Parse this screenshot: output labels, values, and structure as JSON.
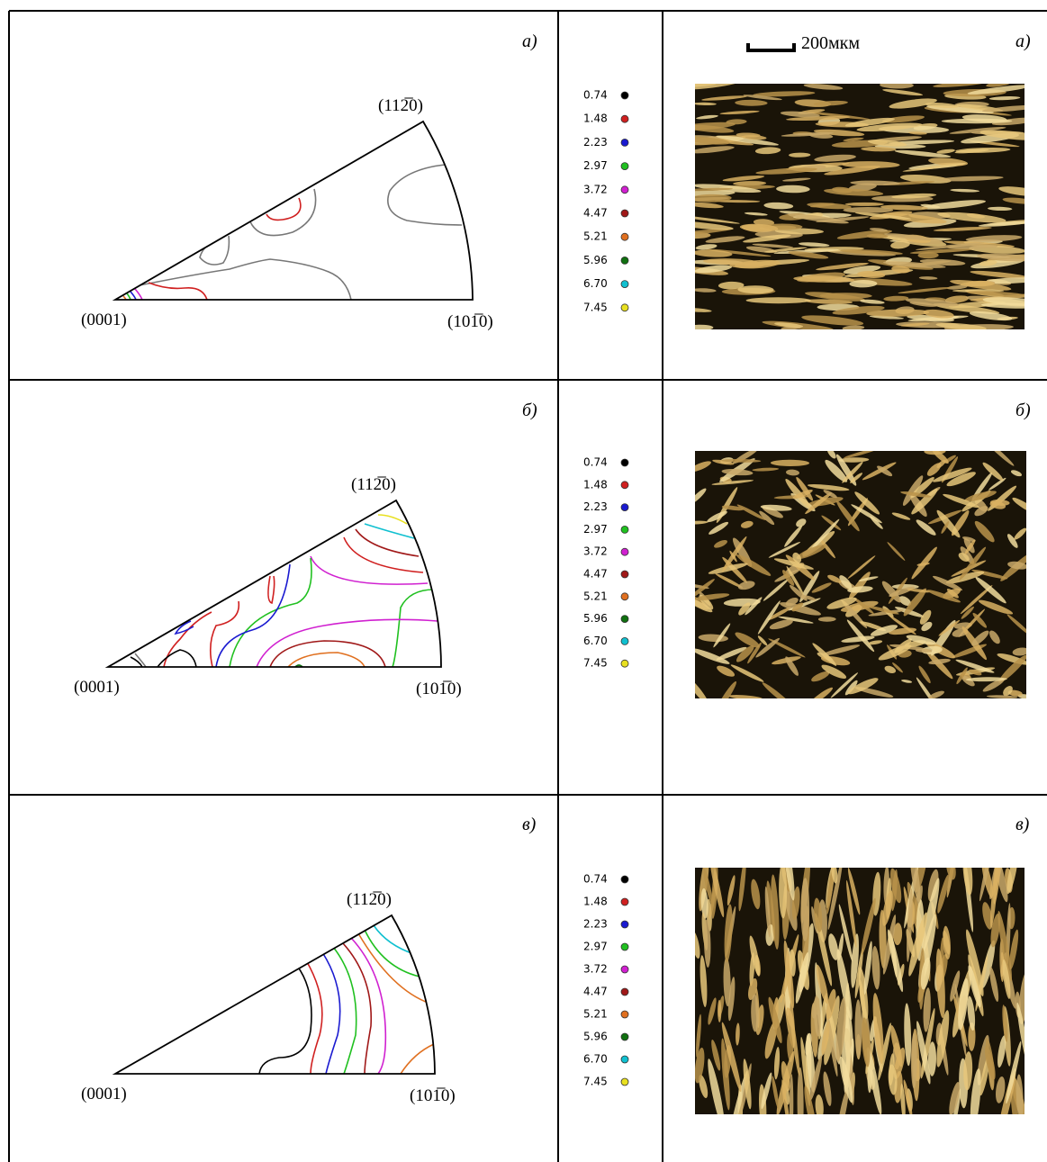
{
  "scale_bar": "200мкм",
  "rows": [
    {
      "label": "а)",
      "pole_labels": {
        "origin": "(0001)",
        "right": "(101̅0)",
        "top": "(112̅0)"
      },
      "legend": [
        "0.74",
        "1.48",
        "2.23",
        "2.97",
        "3.72",
        "4.47",
        "5.21",
        "5.96",
        "6.70",
        "7.45"
      ],
      "micrograph_label": "а)"
    },
    {
      "label": "б)",
      "pole_labels": {
        "origin": "(0001)",
        "right": "(101̅0)",
        "top": "(112̅0)"
      },
      "legend": [
        "0.74",
        "1.48",
        "2.23",
        "2.97",
        "3.72",
        "4.47",
        "5.21",
        "5.96",
        "6.70",
        "7.45"
      ],
      "micrograph_label": "б)"
    },
    {
      "label": "в)",
      "pole_labels": {
        "origin": "(0001)",
        "right": "(101̅0)",
        "top": "(112̅0)"
      },
      "legend": [
        "0.74",
        "1.48",
        "2.23",
        "2.97",
        "3.72",
        "4.47",
        "5.21",
        "5.96",
        "6.70",
        "7.45"
      ],
      "micrograph_label": "в)"
    }
  ]
}
